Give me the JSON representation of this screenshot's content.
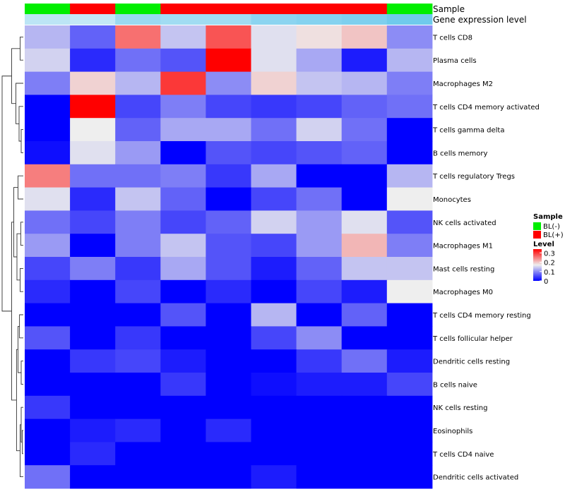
{
  "chart_data": {
    "type": "heatmap",
    "annotation_titles": [
      "Sample",
      "Gene expression level"
    ],
    "sample_groups": [
      "BL(-)",
      "BL(+)",
      "BL(-)",
      "BL(+)",
      "BL(+)",
      "BL(+)",
      "BL(+)",
      "BL(+)",
      "BL(-)"
    ],
    "gene_expression_levels": [
      0.3,
      0.25,
      0.55,
      0.5,
      0.5,
      0.65,
      0.7,
      0.75,
      0.85
    ],
    "rows": [
      "T cells CD8",
      "Plasma cells",
      "Macrophages M2",
      "T cells CD4 memory activated",
      "T cells gamma delta",
      "B cells memory",
      "T cells regulatory  Tregs",
      "Monocytes",
      "NK cells activated",
      "Macrophages M1",
      "Mast cells resting",
      "Macrophages M0",
      "T cells CD4 memory resting",
      "T cells follicular helper",
      "Dendritic cells resting",
      "B cells naive",
      "NK cells resting",
      "Eosinophils",
      "T cells CD4 naive",
      "Dendritic cells activated"
    ],
    "values": [
      [
        0.13,
        0.07,
        0.26,
        0.14,
        0.28,
        0.16,
        0.18,
        0.2,
        0.1
      ],
      [
        0.15,
        0.03,
        0.08,
        0.06,
        0.34,
        0.16,
        0.12,
        0.02,
        0.13
      ],
      [
        0.09,
        0.19,
        0.13,
        0.3,
        0.1,
        0.19,
        0.14,
        0.13,
        0.09
      ],
      [
        0.0,
        0.34,
        0.05,
        0.09,
        0.05,
        0.04,
        0.05,
        0.07,
        0.08
      ],
      [
        0.0,
        0.17,
        0.07,
        0.12,
        0.12,
        0.08,
        0.15,
        0.08,
        0.0
      ],
      [
        0.01,
        0.16,
        0.11,
        0.0,
        0.06,
        0.05,
        0.06,
        0.07,
        0.0
      ],
      [
        0.25,
        0.08,
        0.08,
        0.09,
        0.04,
        0.12,
        0.0,
        0.0,
        0.13
      ],
      [
        0.16,
        0.03,
        0.14,
        0.07,
        0.0,
        0.05,
        0.08,
        0.0,
        0.17
      ],
      [
        0.08,
        0.05,
        0.09,
        0.05,
        0.07,
        0.15,
        0.11,
        0.16,
        0.06
      ],
      [
        0.11,
        0.0,
        0.09,
        0.14,
        0.06,
        0.05,
        0.11,
        0.21,
        0.09
      ],
      [
        0.05,
        0.09,
        0.04,
        0.12,
        0.06,
        0.02,
        0.07,
        0.14,
        0.14
      ],
      [
        0.03,
        0.0,
        0.05,
        0.0,
        0.03,
        0.0,
        0.05,
        0.02,
        0.17
      ],
      [
        0.0,
        0.0,
        0.0,
        0.06,
        0.0,
        0.13,
        0.0,
        0.07,
        0.0
      ],
      [
        0.06,
        0.0,
        0.04,
        0.0,
        0.0,
        0.05,
        0.1,
        0.0,
        0.0
      ],
      [
        0.0,
        0.04,
        0.05,
        0.02,
        0.0,
        0.0,
        0.04,
        0.08,
        0.02
      ],
      [
        0.0,
        0.0,
        0.0,
        0.04,
        0.0,
        0.01,
        0.02,
        0.02,
        0.05
      ],
      [
        0.04,
        0.0,
        0.0,
        0.0,
        0.0,
        0.0,
        0.0,
        0.0,
        0.0
      ],
      [
        0.0,
        0.02,
        0.03,
        0.0,
        0.03,
        0.0,
        0.0,
        0.0,
        0.0
      ],
      [
        0.0,
        0.03,
        0.0,
        0.0,
        0.0,
        0.0,
        0.0,
        0.0,
        0.0
      ],
      [
        0.08,
        0.0,
        0.0,
        0.0,
        0.0,
        0.02,
        0.0,
        0.0,
        0.0
      ]
    ],
    "color_scale": {
      "min": 0,
      "max": 0.34,
      "low": "#0000ff",
      "mid": "#eeeeee",
      "high": "#ff0000",
      "midpoint": 0.17
    },
    "legend": {
      "sample_title": "Sample",
      "sample_entries": [
        {
          "label": "BL(-)",
          "color": "#00ee00"
        },
        {
          "label": "BL(+)",
          "color": "#ff0000"
        }
      ],
      "level_title": "Level",
      "level_ticks": [
        {
          "value": 0.3,
          "label": "0.3"
        },
        {
          "value": 0.2,
          "label": "0.2"
        },
        {
          "value": 0.1,
          "label": "0.1"
        },
        {
          "value": 0.0,
          "label": "0"
        }
      ]
    },
    "gene_level_colors": {
      "low": "#e6f4fa",
      "high": "#5bc3ea"
    },
    "has_row_dendrogram": true
  }
}
